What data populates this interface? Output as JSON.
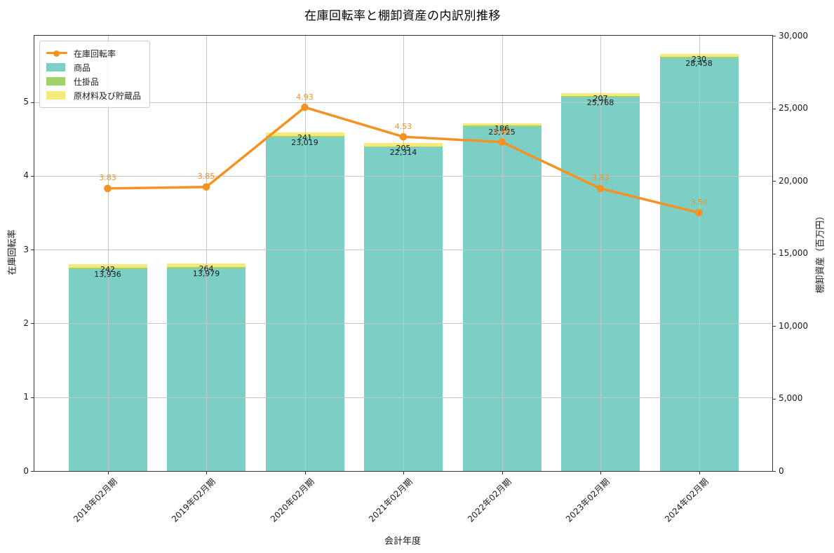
{
  "chart_data": {
    "type": "bar",
    "subtype": "stacked-bars-with-line-overlay",
    "title": "在庫回転率と棚卸資産の内訳別推移",
    "xlabel": "会計年度",
    "ylabel_left": "在庫回転率",
    "ylabel_right": "棚卸資産（百万円）",
    "categories": [
      "2018年02月期",
      "2019年02月期",
      "2020年02月期",
      "2021年02月期",
      "2022年02月期",
      "2023年02月期",
      "2024年02月期"
    ],
    "bar_series": [
      {
        "id": "merchandise",
        "name": "商品",
        "color": "#7ccfc4",
        "values": [
          13936,
          13979,
          23019,
          22314,
          23725,
          25768,
          28458
        ],
        "value_labels": [
          "13,936",
          "13,979",
          "23,019",
          "22,314",
          "23,725",
          "25,768",
          "28,458"
        ]
      },
      {
        "id": "work-in-process",
        "name": "仕掛品",
        "color": "#a2d168",
        "values": null,
        "value_labels": null
      },
      {
        "id": "raw-materials",
        "name": "原材料及び貯蔵品",
        "color": "#f8e97d",
        "values": [
          242,
          264,
          241,
          205,
          186,
          207,
          230
        ],
        "value_labels": [
          "242",
          "264",
          "241",
          "205",
          "186",
          "207",
          "230"
        ]
      }
    ],
    "line_series": {
      "id": "inventory-turnover",
      "name": "在庫回転率",
      "color": "#f49223",
      "values": [
        3.83,
        3.85,
        4.93,
        4.53,
        4.46,
        3.83,
        3.5
      ],
      "value_labels": [
        "3.83",
        "3.85",
        "4.93",
        "4.53",
        "4.46",
        "3.83",
        "3.50"
      ]
    },
    "axes": {
      "left": {
        "min": 0,
        "max": 5.9,
        "ticks": [
          0,
          1,
          2,
          3,
          4,
          5
        ],
        "tick_labels": [
          "0",
          "1",
          "2",
          "3",
          "4",
          "5"
        ]
      },
      "right": {
        "min": 0,
        "max": 30000,
        "tick_values": [
          0,
          5000,
          10000,
          15000,
          20000,
          25000,
          30000
        ],
        "tick_labels": [
          "0",
          "5,000",
          "10,000",
          "15,000",
          "20,000",
          "25,000",
          "30,000"
        ]
      }
    },
    "grid": true,
    "legend_position": "upper-left",
    "colors": {
      "grid": "#c6c6c6",
      "spine": "#333333",
      "text": "#1a1a1a"
    }
  }
}
